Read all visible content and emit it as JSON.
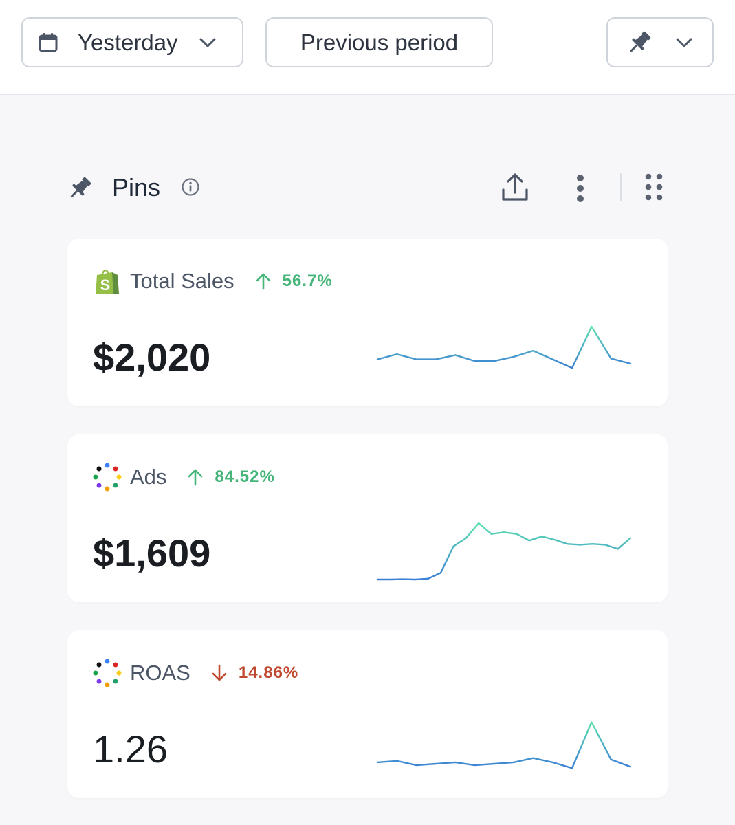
{
  "toolbar": {
    "date_range": "Yesterday",
    "compare": "Previous period"
  },
  "section": {
    "title": "Pins"
  },
  "cards": [
    {
      "label": "Total Sales",
      "logo": "shopify-icon",
      "delta": "56.7%",
      "direction": "up",
      "value": "$2,020",
      "sparkline": [
        33,
        39,
        33,
        33,
        38,
        31,
        31,
        36,
        43,
        33,
        23,
        71,
        34,
        28
      ],
      "sparkline_max": 75
    },
    {
      "label": "Ads",
      "logo": "multi-dot-icon",
      "delta": "84.52%",
      "direction": "up",
      "value": "$1,609",
      "sparkline": [
        5,
        5,
        5.3,
        5,
        6,
        13,
        45,
        55,
        73,
        60,
        62,
        60,
        52,
        57,
        53,
        48,
        47,
        48,
        47,
        42,
        55
      ],
      "sparkline_max": 78
    },
    {
      "label": "ROAS",
      "logo": "multi-dot-icon",
      "delta": "14.86%",
      "direction": "down",
      "value": "1.26",
      "sparkline": [
        12,
        13,
        10,
        11,
        12,
        10,
        11,
        12,
        15,
        12,
        8,
        40,
        14,
        9
      ],
      "sparkline_max": 45
    }
  ],
  "colors": {
    "up": "#46b57a",
    "down": "#c0492f",
    "spark_low": "#3b7fd6",
    "spark_high": "#5ee0b0"
  }
}
